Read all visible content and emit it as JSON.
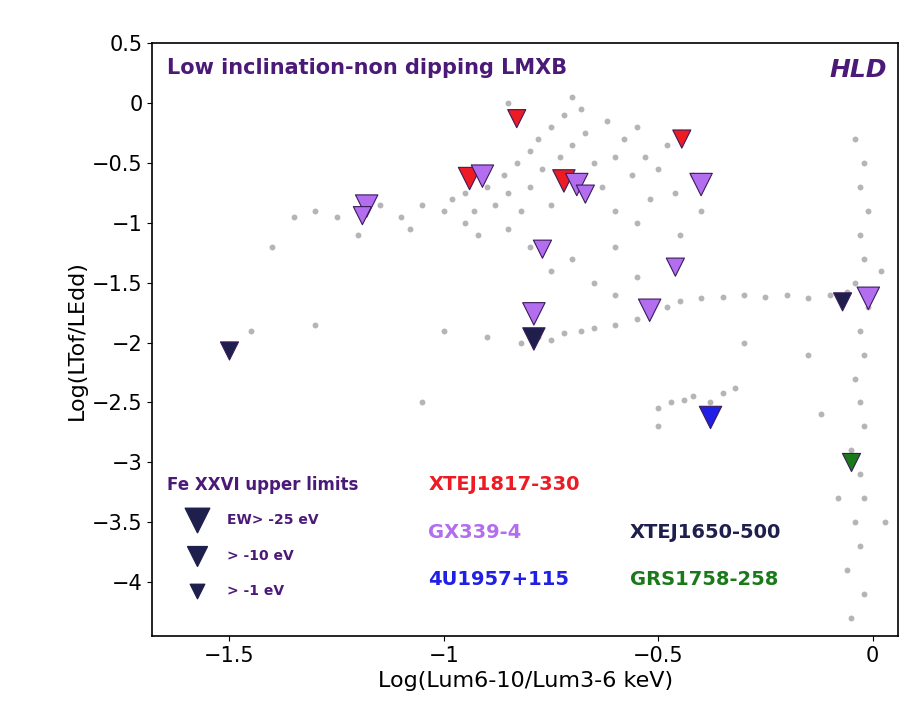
{
  "chart_data": {
    "type": "scatter",
    "title": "Low inclination-non dipping LMXB",
    "subtitle": "HLD",
    "x_label": "Log(Lum6-10/Lum3-6 keV)",
    "y_label": "Log(LTof/LEdd)",
    "xlim": [
      -1.68,
      0.06
    ],
    "ylim": [
      -4.45,
      0.5
    ],
    "xticks": [
      {
        "value": -1.5,
        "label": "−1.5"
      },
      {
        "value": -1,
        "label": "−1"
      },
      {
        "value": -0.5,
        "label": "−0.5"
      },
      0
    ],
    "yticks": [
      0.5,
      0,
      {
        "value": -0.5,
        "label": "−0.5"
      },
      {
        "value": -1,
        "label": "−1"
      },
      {
        "value": -1.5,
        "label": "−1.5"
      },
      {
        "value": -2,
        "label": "−2"
      },
      {
        "value": -2.5,
        "label": "−2.5"
      },
      {
        "value": -3,
        "label": "−3"
      },
      {
        "value": -3.5,
        "label": "−3.5"
      },
      {
        "value": -4,
        "label": "−4"
      }
    ],
    "grid": false,
    "background": {
      "color": "#b5b5b5",
      "marker": "o",
      "x": [
        -1.3,
        -1.25,
        -1.2,
        -1.15,
        -1.1,
        -1.05,
        -1.0,
        -0.98,
        -0.95,
        -0.93,
        -0.9,
        -0.88,
        -0.86,
        -0.85,
        -0.83,
        -0.82,
        -0.8,
        -0.8,
        -0.78,
        -0.77,
        -0.75,
        -0.75,
        -0.73,
        -0.72,
        -0.7,
        -0.7,
        -0.68,
        -0.67,
        -0.65,
        -0.63,
        -0.62,
        -0.6,
        -0.6,
        -0.58,
        -0.56,
        -0.55,
        -0.53,
        -0.52,
        -0.5,
        -0.48,
        -0.46,
        -0.45,
        -0.42,
        -0.4,
        -0.95,
        -1.08,
        -1.35,
        -1.4,
        -0.92,
        -0.85,
        -0.8,
        -0.75,
        -0.7,
        -0.65,
        -0.6,
        -0.55,
        -0.82,
        -0.78,
        -0.75,
        -0.72,
        -0.68,
        -0.65,
        -0.6,
        -0.55,
        -0.52,
        -0.48,
        -0.45,
        -0.4,
        -0.35,
        -0.3,
        -0.25,
        -0.2,
        -0.15,
        -0.1,
        -0.06,
        -0.5,
        -0.47,
        -0.44,
        -0.42,
        -0.38,
        -0.35,
        -0.32,
        -0.5,
        -0.04,
        -0.02,
        -0.03,
        -0.01,
        -0.03,
        -0.02,
        -0.04,
        -0.01,
        -0.03,
        -0.02,
        -0.04,
        -0.03,
        -0.02,
        -0.05,
        -0.03,
        -0.02,
        -0.04,
        -0.03,
        -0.06,
        -0.02,
        -0.05,
        -0.08,
        0.02,
        0.03,
        -1.45,
        -1.3,
        -1.0,
        -0.9,
        -1.05,
        -0.15,
        -0.12,
        -0.6,
        -0.85,
        -0.7,
        -0.55,
        -1.2,
        -0.3
      ],
      "y": [
        -0.9,
        -0.95,
        -0.9,
        -0.85,
        -0.95,
        -0.85,
        -0.9,
        -0.8,
        -0.75,
        -0.9,
        -0.7,
        -0.85,
        -0.6,
        -0.75,
        -0.5,
        -0.9,
        -0.4,
        -0.7,
        -0.3,
        -0.55,
        -0.2,
        -0.85,
        -0.45,
        -0.1,
        -0.35,
        -0.6,
        -0.05,
        -0.25,
        -0.5,
        -0.7,
        -0.15,
        -0.45,
        -0.9,
        -0.3,
        -0.6,
        -1.0,
        -0.45,
        -0.8,
        -0.55,
        -0.35,
        -0.75,
        -1.1,
        -0.6,
        -0.9,
        -1.0,
        -1.05,
        -0.95,
        -1.2,
        -1.1,
        -1.05,
        -1.2,
        -1.4,
        -1.3,
        -1.5,
        -1.6,
        -1.45,
        -2.0,
        -1.95,
        -1.98,
        -1.92,
        -1.9,
        -1.88,
        -1.85,
        -1.8,
        -1.75,
        -1.7,
        -1.65,
        -1.63,
        -1.62,
        -1.6,
        -1.62,
        -1.6,
        -1.63,
        -1.6,
        -1.58,
        -2.55,
        -2.5,
        -2.48,
        -2.45,
        -2.5,
        -2.42,
        -2.38,
        -2.7,
        -0.3,
        -0.5,
        -0.7,
        -0.9,
        -1.1,
        -1.3,
        -1.5,
        -1.7,
        -1.9,
        -2.1,
        -2.3,
        -2.5,
        -2.7,
        -2.9,
        -3.1,
        -3.3,
        -3.5,
        -3.7,
        -3.9,
        -4.1,
        -4.3,
        -3.3,
        -1.4,
        -3.5,
        -1.9,
        -1.85,
        -1.9,
        -1.95,
        -2.5,
        -2.1,
        -2.6,
        -1.2,
        0.0,
        0.05,
        -0.2,
        -1.1,
        -2.0
      ]
    },
    "legend_title": "Fe XXVI upper limits",
    "ew_legend": [
      {
        "value": -25,
        "label": "EW> -25 eV"
      },
      {
        "value": -10,
        "label": "> -10 eV"
      },
      {
        "value": -1,
        "label": "> -1 eV"
      }
    ],
    "ew_legend_color": "#1f1f4d",
    "series": [
      {
        "name": "XTEJ1817-330",
        "color": "#ed1c24",
        "marker": "v",
        "x": [
          -0.83,
          -0.445,
          -0.94,
          -0.72
        ],
        "y": [
          -0.13,
          -0.3,
          -0.63,
          -0.65
        ],
        "ew_limit": [
          -10,
          -10,
          -25,
          -25
        ]
      },
      {
        "name": "GX339-4",
        "color": "#b36ef0",
        "marker": "v",
        "x": [
          -1.18,
          -1.19,
          -0.91,
          -0.69,
          -0.67,
          -0.4,
          -0.77,
          -0.46,
          -0.79,
          -0.52,
          -0.01
        ],
        "y": [
          -0.86,
          -0.94,
          -0.61,
          -0.68,
          -0.76,
          -0.68,
          -1.22,
          -1.37,
          -1.76,
          -1.73,
          -1.63
        ],
        "ew_limit": [
          -25,
          -10,
          -25,
          -25,
          -10,
          -25,
          -10,
          -10,
          -25,
          -25,
          -25
        ]
      },
      {
        "name": "4U1957+115",
        "color": "#1f1fe6",
        "marker": "v",
        "x": [
          -0.38
        ],
        "y": [
          -2.62
        ],
        "ew_limit": [
          -25
        ]
      },
      {
        "name": "XTEJ1650-500",
        "color": "#1f1f4d",
        "marker": "v",
        "x": [
          -1.5,
          -0.79,
          -0.07
        ],
        "y": [
          -2.07,
          -1.97,
          -1.66
        ],
        "ew_limit": [
          -10,
          -25,
          -10
        ]
      },
      {
        "name": "GRS1758-258",
        "color": "#1a7a1a",
        "marker": "v",
        "x": [
          -0.05
        ],
        "y": [
          -3.0
        ],
        "ew_limit": [
          -10
        ]
      }
    ]
  }
}
